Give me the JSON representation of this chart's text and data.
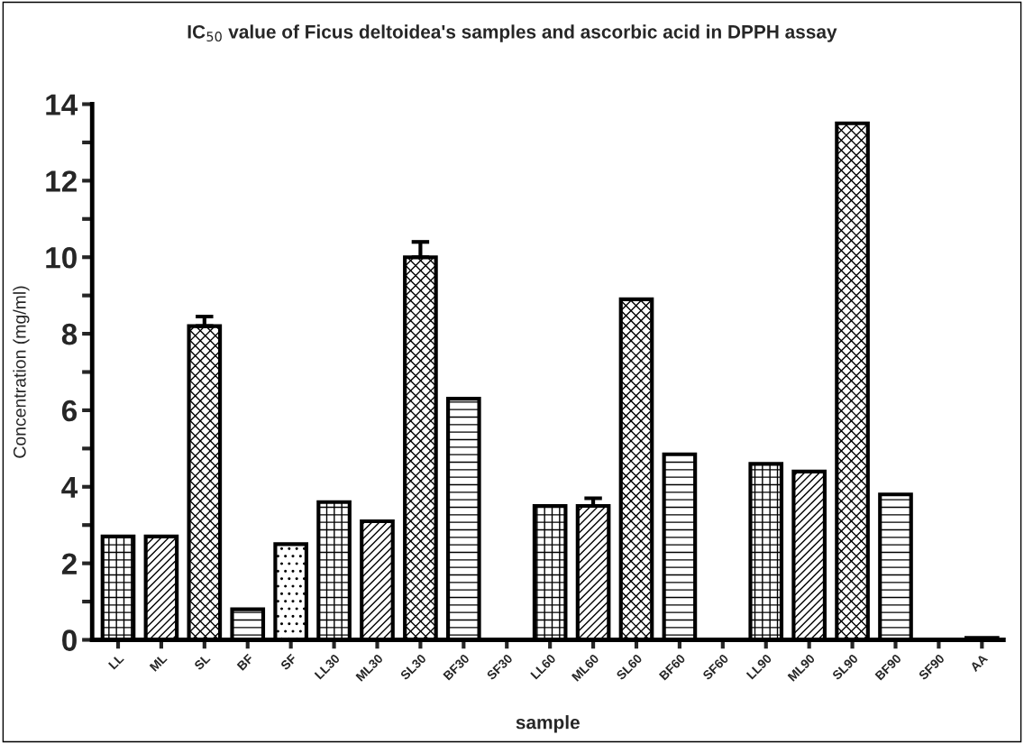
{
  "chart_data": {
    "type": "bar",
    "title": "IC$_{50}$ value of Ficus deltoidea's samples and ascorbic acid in DPPH assay",
    "xlabel": "sample",
    "ylabel": "Concentration (mg/ml)",
    "categories": [
      "LL",
      "ML",
      "SL",
      "BF",
      "SF",
      "LL30",
      "ML30",
      "SL30",
      "BF30",
      "SF30",
      "LL60",
      "ML60",
      "SL60",
      "BF60",
      "SF60",
      "LL90",
      "ML90",
      "SL90",
      "BF90",
      "SF90",
      "AA"
    ],
    "values": [
      2.7,
      2.7,
      8.2,
      0.8,
      2.5,
      3.6,
      3.1,
      10.0,
      6.3,
      null,
      3.5,
      3.5,
      8.9,
      4.85,
      null,
      4.6,
      4.4,
      13.5,
      3.8,
      null,
      0.05
    ],
    "errors": [
      null,
      null,
      0.25,
      null,
      null,
      null,
      null,
      0.4,
      null,
      null,
      null,
      0.2,
      null,
      null,
      null,
      null,
      null,
      null,
      null,
      null,
      null
    ],
    "color": "#000000",
    "ylim": [
      0,
      14
    ],
    "yticks": [
      0,
      {
        "value": 1,
        "label": null
      },
      2,
      {
        "value": 3,
        "label": null
      },
      4,
      {
        "value": 5,
        "label": null
      },
      6,
      {
        "value": 7,
        "label": null
      },
      8,
      {
        "value": 9,
        "label": null
      },
      10,
      {
        "value": 11,
        "label": null
      },
      12,
      {
        "value": 13,
        "label": null
      },
      14
    ],
    "grid": false,
    "legend": false
  }
}
